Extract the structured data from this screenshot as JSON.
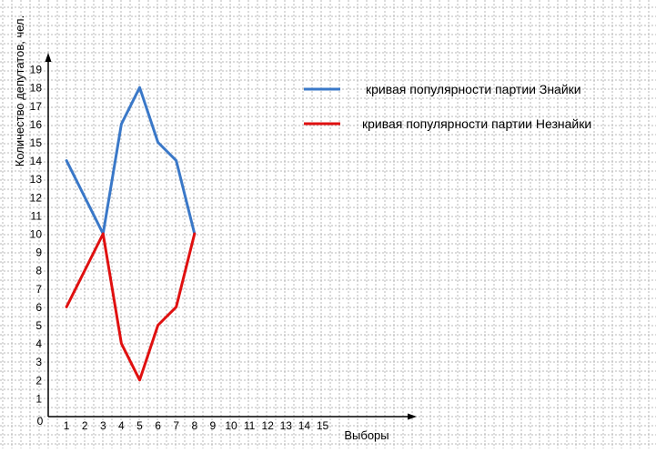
{
  "colors": {
    "grid": "#b8b8b8",
    "axis": "#000000",
    "znayka": "#3a78c8",
    "neznayka": "#e01010"
  },
  "chart_data": {
    "type": "line",
    "title": "",
    "xlabel": "Выборы",
    "ylabel": "Количество депутатов, чел.",
    "x_ticks": [
      "1",
      "2",
      "3",
      "4",
      "5",
      "6",
      "7",
      "8",
      "9",
      "10",
      "11",
      "12",
      "13",
      "14",
      "15"
    ],
    "y_ticks": [
      "1",
      "2",
      "3",
      "4",
      "5",
      "6",
      "7",
      "8",
      "9",
      "10",
      "11",
      "12",
      "13",
      "14",
      "15",
      "16",
      "17",
      "18",
      "19"
    ],
    "origin_label": "0",
    "xlim": [
      0,
      19
    ],
    "ylim": [
      0,
      19
    ],
    "grid": true,
    "legend_position": "top-right",
    "series": [
      {
        "name": "кривая популярности партии Знайки",
        "color_key": "znayka",
        "x": [
          1,
          3,
          4,
          5,
          6,
          7,
          8
        ],
        "y": [
          14,
          10,
          16,
          18,
          15,
          14,
          10
        ]
      },
      {
        "name": "кривая популярности партии Незнайки",
        "color_key": "neznayka",
        "x": [
          1,
          3,
          4,
          5,
          6,
          7,
          8
        ],
        "y": [
          6,
          10,
          4,
          2,
          5,
          6,
          10
        ]
      }
    ]
  }
}
